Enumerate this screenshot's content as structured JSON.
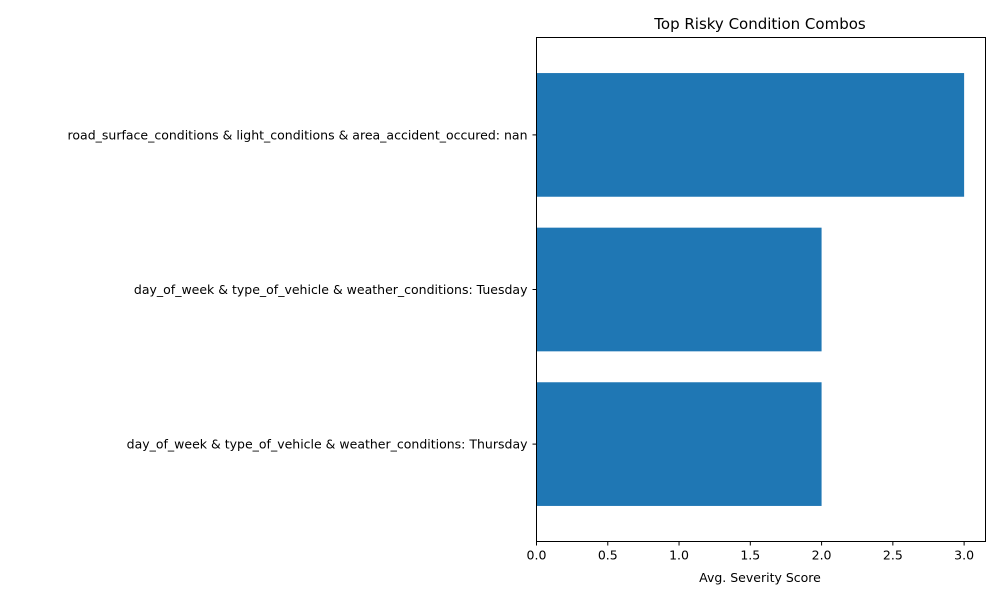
{
  "chart_data": {
    "type": "bar",
    "orientation": "horizontal",
    "title": "Top Risky Condition Combos",
    "xlabel": "Avg. Severity Score",
    "ylabel": "",
    "categories": [
      "road_surface_conditions & light_conditions & area_accident_occured: nan",
      "day_of_week & type_of_vehicle & weather_conditions: Tuesday",
      "day_of_week & type_of_vehicle & weather_conditions: Thursday"
    ],
    "values": [
      3.0,
      2.0,
      2.0
    ],
    "xlim": [
      0,
      3.15
    ],
    "xticks": [
      "0.0",
      "0.5",
      "1.0",
      "1.5",
      "2.0",
      "2.5",
      "3.0"
    ],
    "bar_color": "#1f77b4",
    "grid": false,
    "legend": "none"
  }
}
